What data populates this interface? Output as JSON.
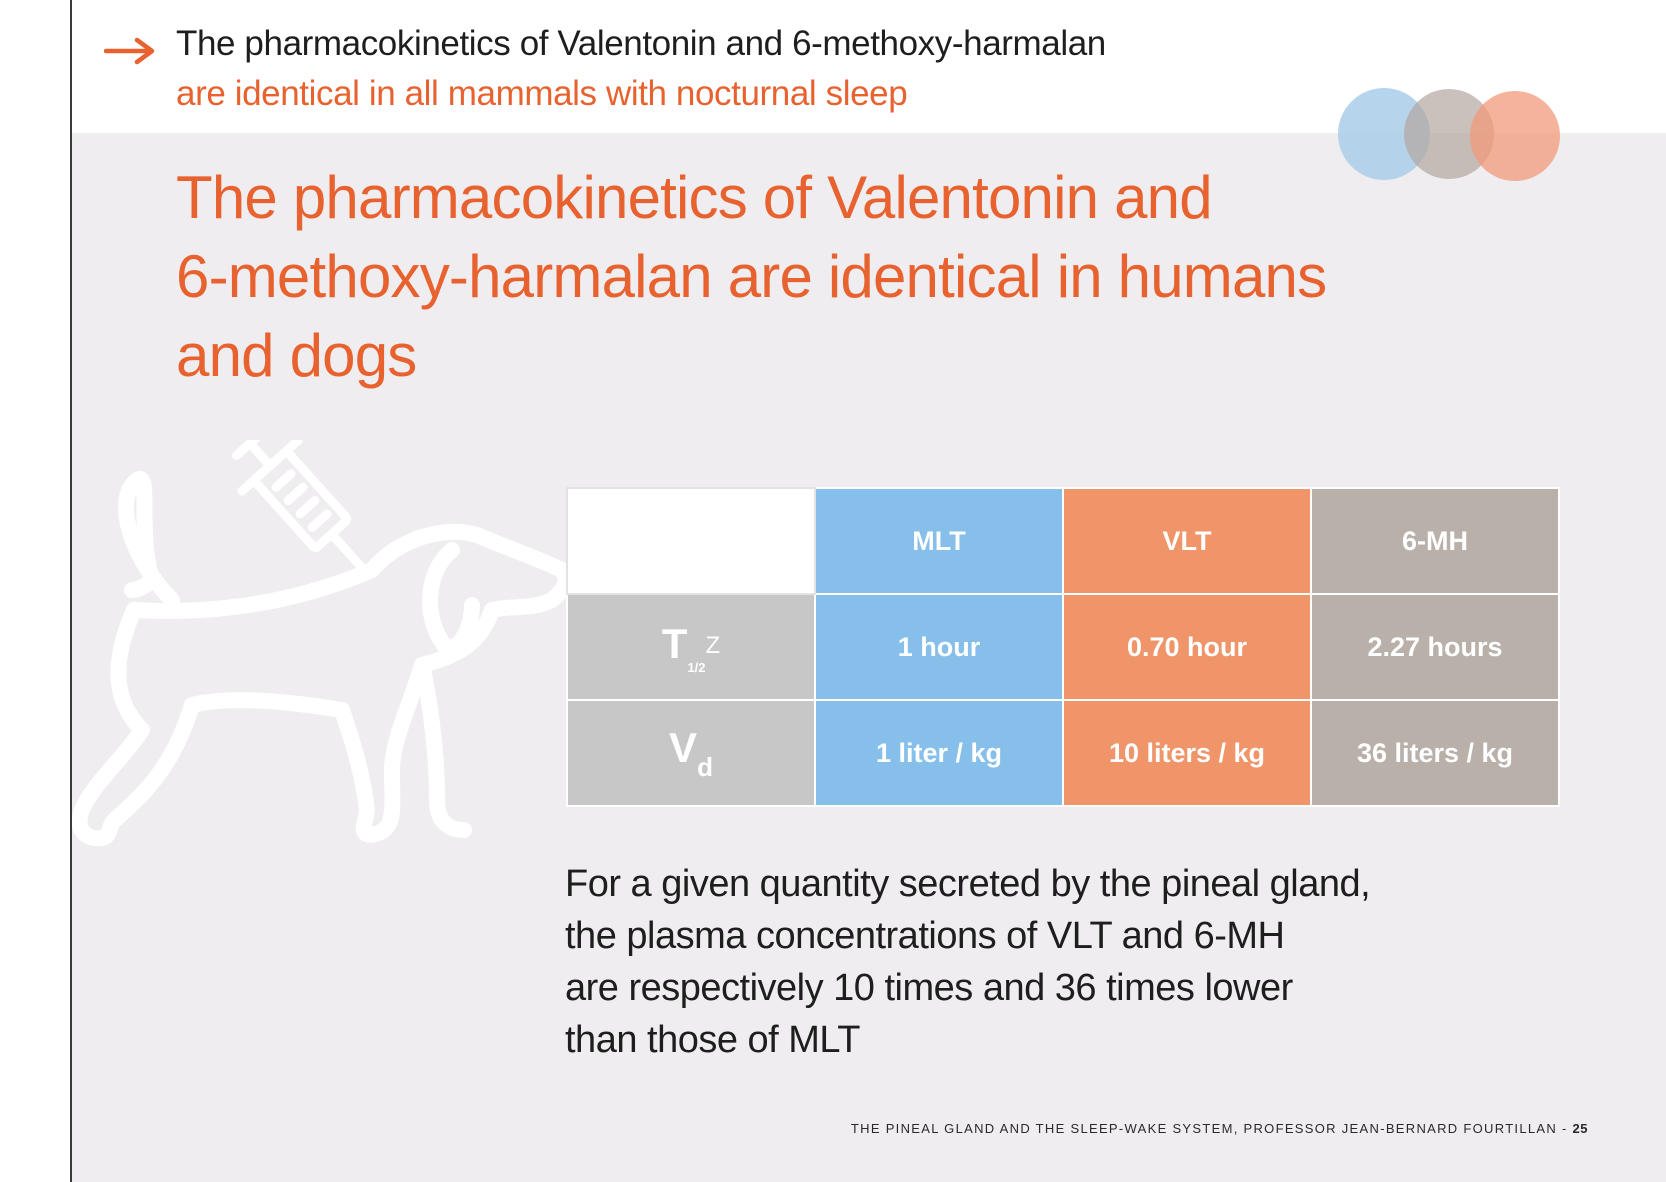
{
  "header": {
    "line1": "The pharmacokinetics of Valentonin and 6-methoxy-harmalan",
    "line2": "are identical in all mammals with nocturnal sleep",
    "arrow_icon": "arrow-right-icon",
    "accent_color": "#e8622f"
  },
  "title": {
    "lines": [
      "The pharmacokinetics of Valentonin and",
      "6-methoxy-harmalan are identical in humans",
      "and dogs"
    ]
  },
  "decorations": {
    "circles_icon": "overlapping-circles-icon",
    "circle_colors": [
      "#a9cde9",
      "#bfb2ab",
      "#f2a181"
    ],
    "dog_icon": "dog-injection-icon"
  },
  "table": {
    "columns": [
      "MLT",
      "VLT",
      "6-MH"
    ],
    "column_colors": [
      "#86bfea",
      "#f0956a",
      "#bab0aa"
    ],
    "rows": [
      {
        "param_main": "T",
        "param_sub": "1/2",
        "param_suffix": "Z",
        "values": [
          "1 hour",
          "0.70 hour",
          "2.27 hours"
        ]
      },
      {
        "param_main": "V",
        "param_sub": "d",
        "values": [
          "1 liter / kg",
          "10 liters / kg",
          "36 liters / kg"
        ]
      }
    ]
  },
  "conclusion": {
    "lines": [
      "For a given quantity secreted by the pineal gland,",
      "the plasma concentrations of VLT and 6-MH",
      "are respectively 10 times and 36 times lower",
      "than those of MLT"
    ]
  },
  "footer": {
    "text": "THE PINEAL GLAND AND THE SLEEP-WAKE SYSTEM, PROFESSOR JEAN-BERNARD FOURTILLAN -",
    "page": "25"
  }
}
